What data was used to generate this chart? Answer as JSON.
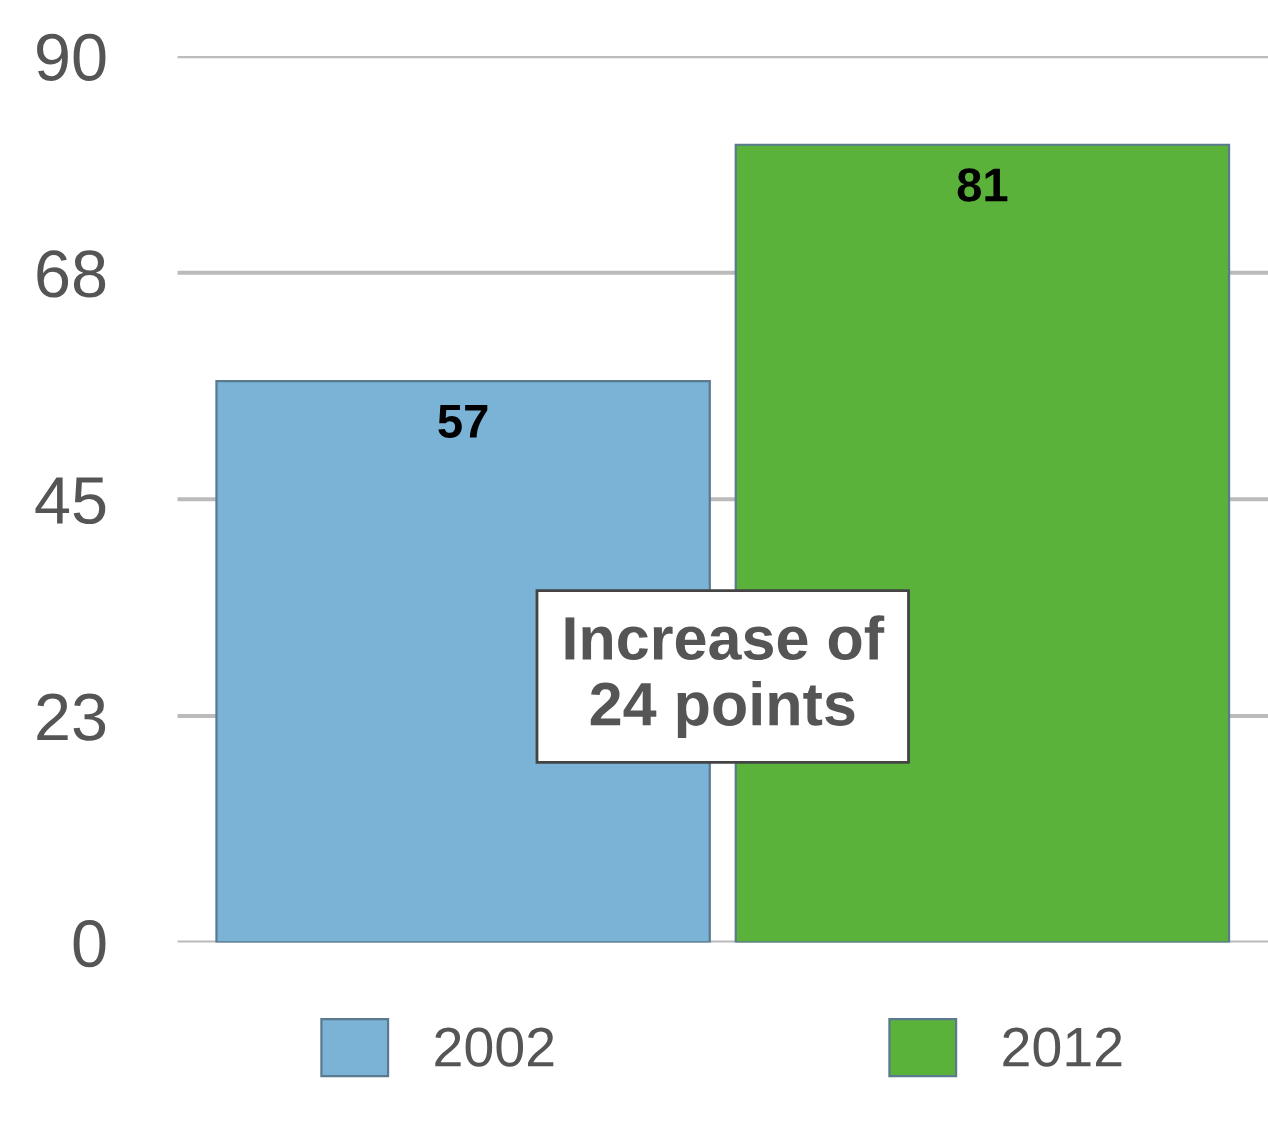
{
  "chart_data": {
    "type": "bar",
    "categories": [
      null,
      null
    ],
    "series": [
      {
        "name": "2002",
        "color": "#7ab3d6",
        "values": [
          57,
          null
        ]
      },
      {
        "name": "2012",
        "color": "#5bb23a",
        "values": [
          null,
          81
        ]
      }
    ],
    "ylim": [
      0,
      90
    ],
    "yticks": [
      0,
      23,
      45,
      68,
      90
    ],
    "grid": "y",
    "legend": "bottom",
    "data_labels": true,
    "annotations": [
      "Increase of\n24 points"
    ]
  }
}
